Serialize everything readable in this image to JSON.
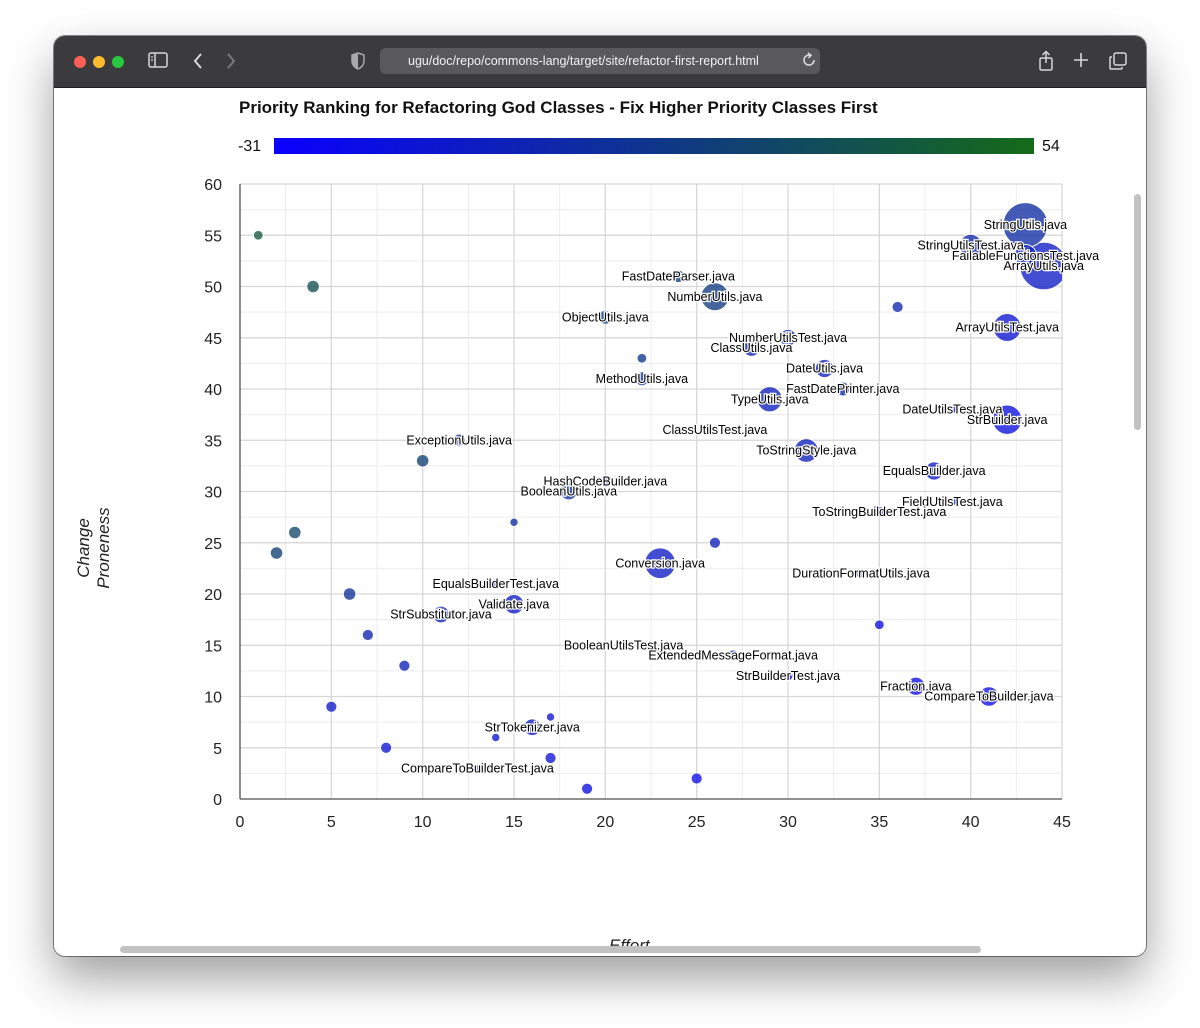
{
  "browser": {
    "url": "ugu/doc/repo/commons-lang/target/site/refactor-first-report.html",
    "icons": [
      "sidebar-icon",
      "back-icon",
      "forward-icon",
      "shield-icon",
      "reload-icon",
      "share-icon",
      "new-tab-icon",
      "tabs-overview-icon"
    ]
  },
  "report": {
    "title": "Priority Ranking for Refactoring God Classes - Fix Higher Priority Classes First",
    "legend_min": "-31",
    "legend_max": "54",
    "x_axis_title": "Effort",
    "y_axis_title": "Change Proneness"
  },
  "colors": {
    "low": "#0a00ff",
    "high": "#146b18"
  },
  "chart_data": {
    "type": "scatter",
    "title": "Priority Ranking for Refactoring God Classes - Fix Higher Priority Classes First",
    "xlabel": "Effort",
    "ylabel": "Change Proneness",
    "xlim": [
      0,
      45
    ],
    "ylim": [
      0,
      60
    ],
    "x_ticks": [
      0,
      5,
      10,
      15,
      20,
      25,
      30,
      35,
      40,
      45
    ],
    "y_ticks": [
      0,
      5,
      10,
      15,
      20,
      25,
      30,
      35,
      40,
      45,
      50,
      55,
      60
    ],
    "grid": true,
    "color_scale": {
      "min": -31,
      "max": 54,
      "low_color": "#0a00ff",
      "high_color": "#146b18"
    },
    "points": [
      {
        "x": 43,
        "y": 56,
        "size": 3.2,
        "color": 0.4,
        "label": "StringUtils.java"
      },
      {
        "x": 44,
        "y": 52,
        "size": 3.4,
        "color": 0.25,
        "label": "ArrayUtils.java"
      },
      {
        "x": 40,
        "y": 54,
        "size": 1.6,
        "color": 0.35,
        "label": "StringUtilsTest.java"
      },
      {
        "x": 43,
        "y": 53,
        "size": 1.6,
        "color": 0.3,
        "label": "FailableFunctionsTest.java"
      },
      {
        "x": 24,
        "y": 51,
        "size": 0.9,
        "color": 0.6,
        "label": "FastDateParser.java"
      },
      {
        "x": 26,
        "y": 49,
        "size": 2.0,
        "color": 0.55,
        "label": "NumberUtils.java"
      },
      {
        "x": 20,
        "y": 47,
        "size": 1.0,
        "color": 0.55,
        "label": "ObjectUtils.java"
      },
      {
        "x": 36,
        "y": 48,
        "size": 0.8,
        "color": 0.35,
        "label": ""
      },
      {
        "x": 42,
        "y": 46,
        "size": 2.0,
        "color": 0.2,
        "label": "ArrayUtilsTest.java"
      },
      {
        "x": 30,
        "y": 45,
        "size": 1.2,
        "color": 0.35,
        "label": "NumberUtilsTest.java"
      },
      {
        "x": 28,
        "y": 44,
        "size": 1.2,
        "color": 0.35,
        "label": "ClassUtils.java"
      },
      {
        "x": 22,
        "y": 43,
        "size": 0.7,
        "color": 0.5,
        "label": ""
      },
      {
        "x": 32,
        "y": 42,
        "size": 1.3,
        "color": 0.3,
        "label": "DateUtils.java"
      },
      {
        "x": 22,
        "y": 41,
        "size": 1.0,
        "color": 0.4,
        "label": "MethodUtils.java"
      },
      {
        "x": 33,
        "y": 40,
        "size": 1.0,
        "color": 0.35,
        "label": "FastDatePrinter.java"
      },
      {
        "x": 29,
        "y": 39,
        "size": 1.8,
        "color": 0.3,
        "label": "TypeUtils.java"
      },
      {
        "x": 39,
        "y": 38,
        "size": 0.6,
        "color": 0.3,
        "label": "DateUtilsTest.java"
      },
      {
        "x": 42,
        "y": 37,
        "size": 2.1,
        "color": 0.15,
        "label": "StrBuilder.java"
      },
      {
        "x": 26,
        "y": 36,
        "size": 0.6,
        "color": 0.3,
        "label": "ClassUtilsTest.java"
      },
      {
        "x": 12,
        "y": 35,
        "size": 0.9,
        "color": 0.45,
        "label": "ExceptionUtils.java"
      },
      {
        "x": 31,
        "y": 34,
        "size": 1.7,
        "color": 0.3,
        "label": "ToStringStyle.java"
      },
      {
        "x": 10,
        "y": 33,
        "size": 0.9,
        "color": 0.6,
        "label": ""
      },
      {
        "x": 38,
        "y": 32,
        "size": 1.3,
        "color": 0.25,
        "label": "EqualsBuilder.java"
      },
      {
        "x": 20,
        "y": 31,
        "size": 0.7,
        "color": 0.3,
        "label": "HashCodeBuilder.java"
      },
      {
        "x": 18,
        "y": 30,
        "size": 1.2,
        "color": 0.45,
        "label": "BooleanUtils.java"
      },
      {
        "x": 39,
        "y": 29,
        "size": 0.6,
        "color": 0.3,
        "label": "FieldUtilsTest.java"
      },
      {
        "x": 35,
        "y": 28,
        "size": 0.8,
        "color": 0.25,
        "label": "ToStringBuilderTest.java"
      },
      {
        "x": 15,
        "y": 27,
        "size": 0.6,
        "color": 0.4,
        "label": ""
      },
      {
        "x": 3,
        "y": 26,
        "size": 0.9,
        "color": 0.65,
        "label": ""
      },
      {
        "x": 26,
        "y": 25,
        "size": 0.8,
        "color": 0.3,
        "label": ""
      },
      {
        "x": 2,
        "y": 24,
        "size": 0.9,
        "color": 0.6,
        "label": ""
      },
      {
        "x": 23,
        "y": 23,
        "size": 2.2,
        "color": 0.25,
        "label": "Conversion.java"
      },
      {
        "x": 34,
        "y": 22,
        "size": 0.7,
        "color": 0.3,
        "label": "DurationFormatUtils.java"
      },
      {
        "x": 14,
        "y": 21,
        "size": 0.7,
        "color": 0.3,
        "label": "EqualsBuilderTest.java"
      },
      {
        "x": 6,
        "y": 20,
        "size": 0.9,
        "color": 0.45,
        "label": ""
      },
      {
        "x": 15,
        "y": 19,
        "size": 1.4,
        "color": 0.25,
        "label": "Validate.java"
      },
      {
        "x": 11,
        "y": 18,
        "size": 1.2,
        "color": 0.3,
        "label": "StrSubstitutor.java"
      },
      {
        "x": 35,
        "y": 17,
        "size": 0.7,
        "color": 0.1,
        "label": ""
      },
      {
        "x": 7,
        "y": 16,
        "size": 0.8,
        "color": 0.35,
        "label": ""
      },
      {
        "x": 21,
        "y": 15,
        "size": 0.6,
        "color": 0.3,
        "label": "BooleanUtilsTest.java"
      },
      {
        "x": 27,
        "y": 14,
        "size": 0.8,
        "color": 0.25,
        "label": "ExtendedMessageFormat.java"
      },
      {
        "x": 9,
        "y": 13,
        "size": 0.8,
        "color": 0.3,
        "label": ""
      },
      {
        "x": 30,
        "y": 12,
        "size": 0.7,
        "color": 0.2,
        "label": "StrBuilderTest.java"
      },
      {
        "x": 37,
        "y": 11,
        "size": 1.3,
        "color": 0.1,
        "label": "Fraction.java"
      },
      {
        "x": 41,
        "y": 10,
        "size": 1.4,
        "color": 0.1,
        "label": "CompareToBuilder.java"
      },
      {
        "x": 5,
        "y": 9,
        "size": 0.8,
        "color": 0.25,
        "label": ""
      },
      {
        "x": 17,
        "y": 8,
        "size": 0.6,
        "color": 0.2,
        "label": ""
      },
      {
        "x": 16,
        "y": 7,
        "size": 1.2,
        "color": 0.25,
        "label": "StrTokenizer.java"
      },
      {
        "x": 14,
        "y": 6,
        "size": 0.6,
        "color": 0.2,
        "label": ""
      },
      {
        "x": 8,
        "y": 5,
        "size": 0.8,
        "color": 0.2,
        "label": ""
      },
      {
        "x": 17,
        "y": 4,
        "size": 0.8,
        "color": 0.2,
        "label": ""
      },
      {
        "x": 13,
        "y": 3,
        "size": 0.5,
        "color": 0.25,
        "label": "CompareToBuilderTest.java"
      },
      {
        "x": 25,
        "y": 2,
        "size": 0.8,
        "color": 0.1,
        "label": ""
      },
      {
        "x": 19,
        "y": 1,
        "size": 0.8,
        "color": 0.15,
        "label": ""
      },
      {
        "x": 1,
        "y": 55,
        "size": 0.7,
        "color": 0.85,
        "label": ""
      },
      {
        "x": 4,
        "y": 50,
        "size": 0.9,
        "color": 0.75,
        "label": ""
      }
    ]
  }
}
